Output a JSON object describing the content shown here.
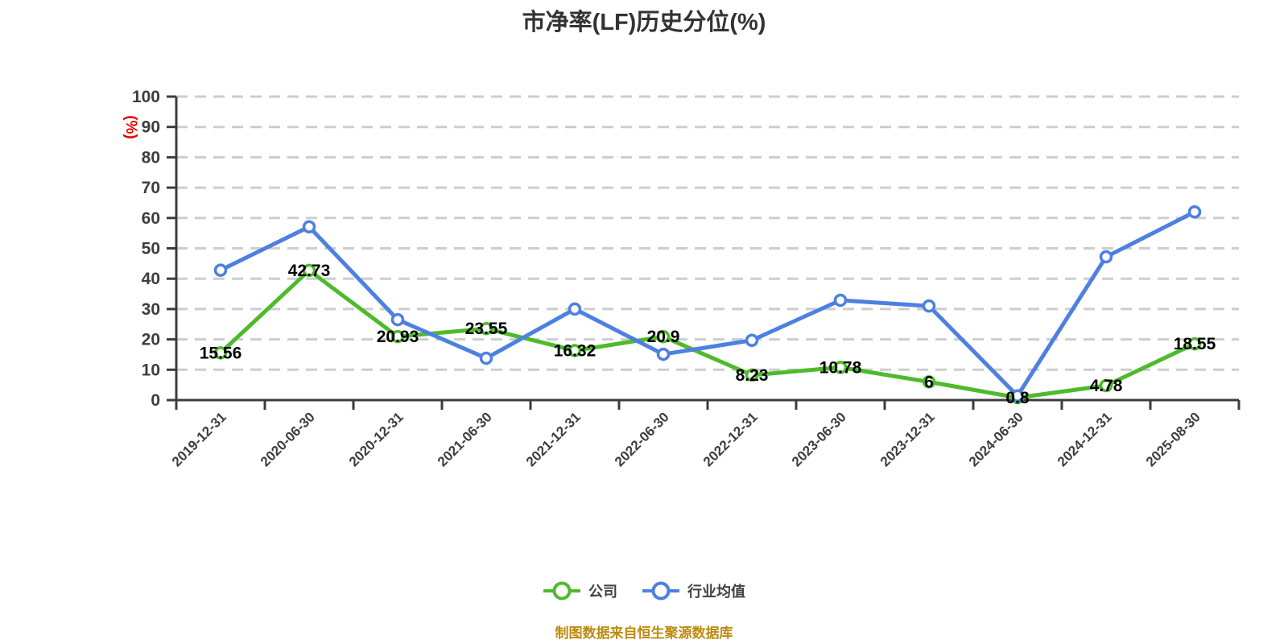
{
  "title": "市净率(LF)历史分位(%)",
  "source_note": "制图数据来自恒生聚源数据库",
  "y_axis": {
    "unit_label": "(%)",
    "ticks": [
      0,
      10,
      20,
      30,
      40,
      50,
      60,
      70,
      80,
      90,
      100
    ]
  },
  "colors": {
    "company_line": "#4fba2c",
    "industry_line": "#4d80e0",
    "axis": "#3c3c3c",
    "grid": "#cdcdcd",
    "title_text": "#333333",
    "tick_text": "#3d3d3d",
    "data_label_text": "#000000",
    "unit_label_red": "#e60000",
    "source_text": "#bd8a10",
    "legend_text": "#404040",
    "marker_fill": "#ffffff",
    "background": "#ffffff"
  },
  "chart_data": {
    "type": "line",
    "title": "市净率(LF)历史分位(%)",
    "ylabel": "(%)",
    "ylim": [
      0,
      100
    ],
    "grid": "horizontal-dashed",
    "legend_position": "bottom",
    "categories": [
      "2019-12-31",
      "2020-06-30",
      "2020-12-31",
      "2021-06-30",
      "2021-12-31",
      "2022-06-30",
      "2022-12-31",
      "2023-06-30",
      "2023-12-31",
      "2024-06-30",
      "2024-12-31",
      "2025-08-30"
    ],
    "series": [
      {
        "name": "公司",
        "color": "#4fba2c",
        "values": [
          15.56,
          42.73,
          20.93,
          23.55,
          16.32,
          20.9,
          8.23,
          10.78,
          6,
          0.8,
          4.78,
          18.55
        ],
        "labels": [
          "15.56",
          "42.73",
          "20.93",
          "23.55",
          "16.32",
          "20.9",
          "8.23",
          "10.78",
          "6",
          "0.8",
          "4.78",
          "18.55"
        ],
        "labels_visible": true
      },
      {
        "name": "行业均值",
        "color": "#4d80e0",
        "values": [
          42.8,
          57.1,
          26.5,
          13.8,
          30,
          15.1,
          19.7,
          32.9,
          31,
          1.4,
          47.2,
          62
        ],
        "labels_visible": false
      }
    ]
  }
}
